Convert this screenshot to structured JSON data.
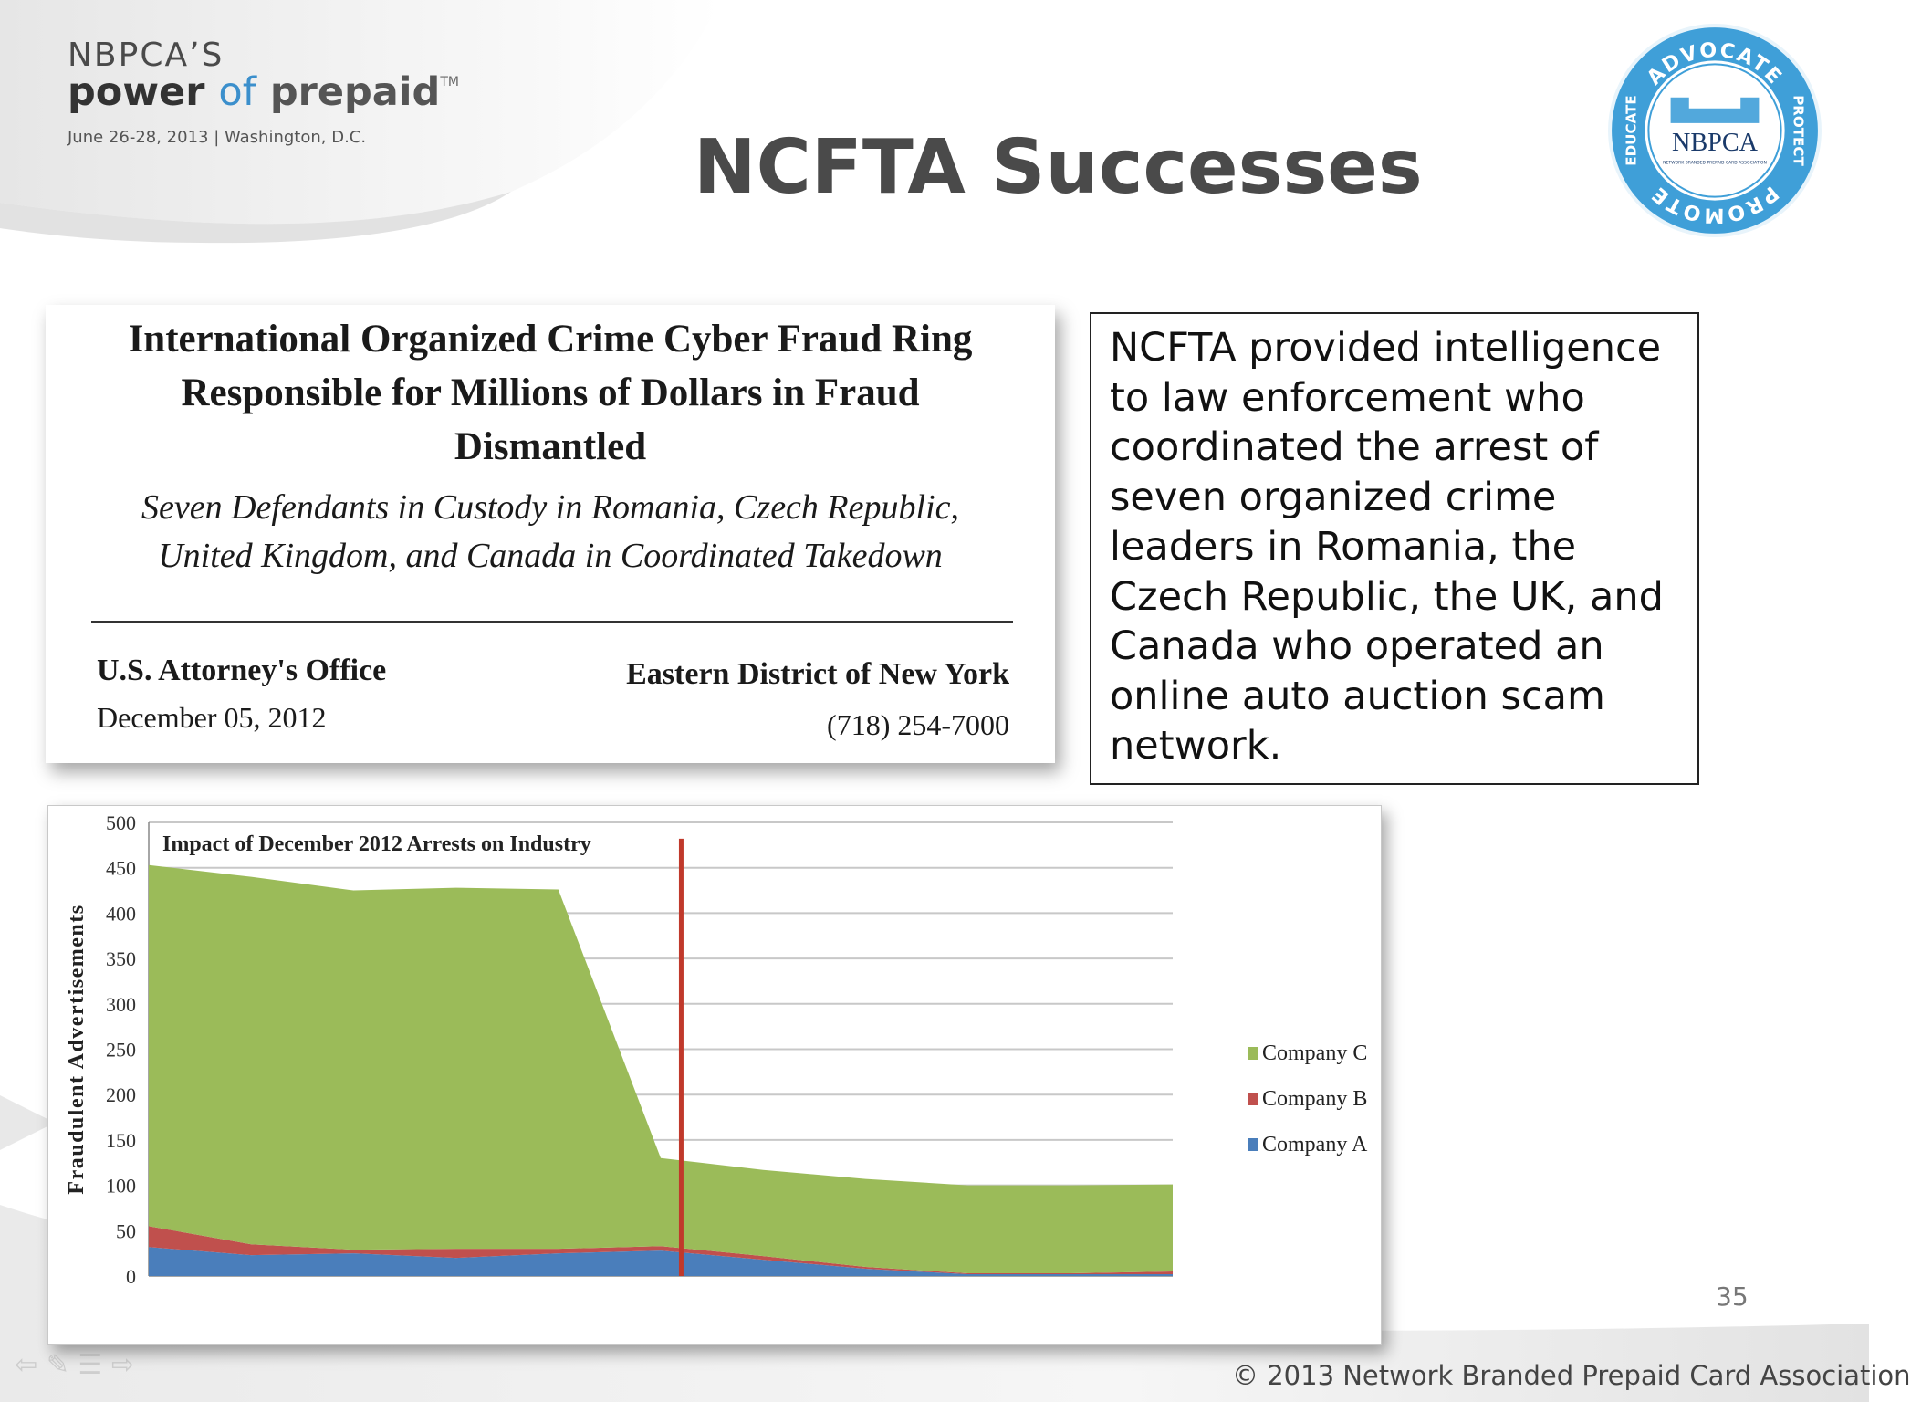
{
  "header": {
    "brand_top": "NBPCA’S",
    "brand_power": "power",
    "brand_of": "of",
    "brand_prepaid": "prepaid",
    "brand_tm": "TM",
    "event_date": "June 26-28, 2013 | Washington, D.C."
  },
  "slide": {
    "title": "NCFTA Successes",
    "page_number": "35",
    "footer": "© 2013 Network Branded Prepaid Card Association"
  },
  "seal": {
    "top_text": "ADVOCATE",
    "right_text": "PROTECT",
    "bottom_text": "PROMOTE",
    "left_text": "EDUCATE",
    "center_text": "NBPCA",
    "center_subtext": "NETWORK BRANDED PREPAID CARD ASSOCIATION",
    "color": "#3f9fd8"
  },
  "press_release": {
    "headline_line1": "International Organized Crime Cyber Fraud Ring",
    "headline_line2": "Responsible for Millions of Dollars in Fraud",
    "headline_line3": "Dismantled",
    "sub_line1": "Seven Defendants in Custody in Romania, Czech Republic,",
    "sub_line2": "United Kingdom, and Canada in Coordinated Takedown",
    "office": "U.S. Attorney's Office",
    "date": "December 05, 2012",
    "district": "Eastern District of New York",
    "phone": "(718) 254-7000"
  },
  "callout": {
    "text": "NCFTA provided intelligence to law enforcement who coordinated the arrest of seven organized crime leaders in Romania, the Czech Republic, the UK, and Canada who operated an online auto auction scam network."
  },
  "chart_data": {
    "type": "area",
    "stacked": true,
    "title": "Impact of December 2012 Arrests on Industry",
    "ylabel": "Fraudulent Advertisements",
    "xlabel": "",
    "ylim": [
      0,
      500
    ],
    "yticks": [
      0,
      50,
      100,
      150,
      200,
      250,
      300,
      350,
      400,
      450,
      500
    ],
    "grid": true,
    "legend_position": "right",
    "marker": {
      "x": 5.2,
      "color": "#c0392b"
    },
    "x": [
      0,
      1,
      2,
      3,
      4,
      5,
      6,
      7,
      8,
      9,
      10
    ],
    "series": [
      {
        "name": "Company A",
        "color": "#4a7ebb",
        "values": [
          32,
          23,
          25,
          20,
          25,
          28,
          18,
          8,
          2,
          2,
          2
        ]
      },
      {
        "name": "Company B",
        "color": "#c0504d",
        "values": [
          23,
          12,
          4,
          10,
          5,
          5,
          4,
          2,
          1,
          1,
          3
        ]
      },
      {
        "name": "Company C",
        "color": "#9bbb59",
        "values": [
          398,
          405,
          396,
          398,
          396,
          97,
          95,
          97,
          97,
          97,
          96
        ]
      }
    ]
  }
}
